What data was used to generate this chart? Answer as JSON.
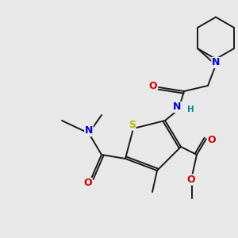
{
  "bg_color": "#e8e8e8",
  "bond_color": "#1a1a1a",
  "atom_colors": {
    "S": "#b8b800",
    "N": "#0000cc",
    "O": "#cc0000",
    "H": "#008888",
    "C": "#1a1a1a"
  },
  "font_size_atom": 8.5,
  "lw": 1.4
}
